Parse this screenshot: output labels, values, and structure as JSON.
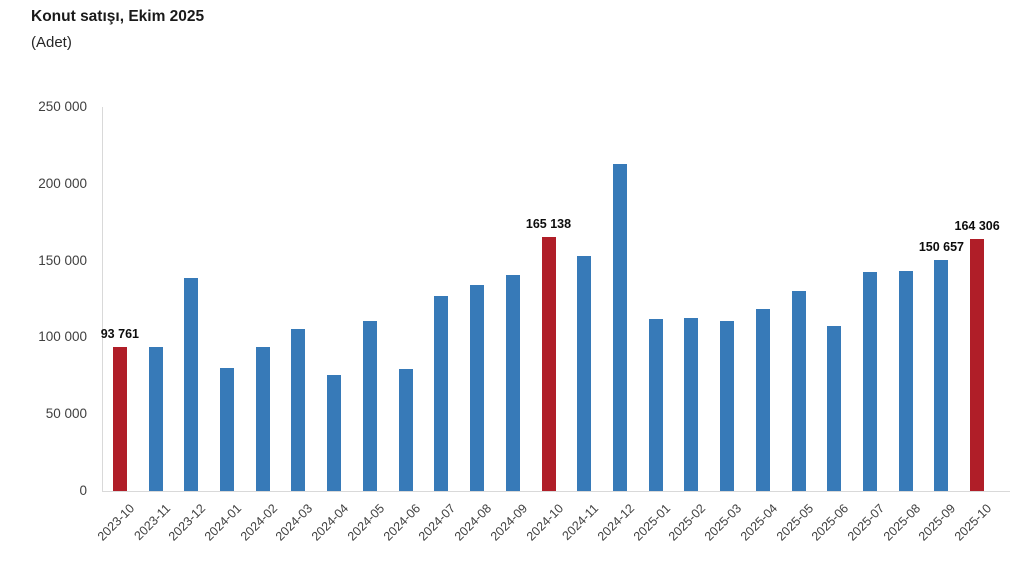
{
  "header": {
    "title": "Konut satışı, Ekim 2025",
    "subtitle": "(Adet)"
  },
  "chart_data": {
    "type": "bar",
    "title": "Konut satışı, Ekim 2025",
    "ylabel": "Adet",
    "categories": [
      "2023-10",
      "2023-11",
      "2023-12",
      "2024-01",
      "2024-02",
      "2024-03",
      "2024-04",
      "2024-05",
      "2024-06",
      "2024-07",
      "2024-08",
      "2024-09",
      "2024-10",
      "2024-11",
      "2024-12",
      "2025-01",
      "2025-02",
      "2025-03",
      "2025-04",
      "2025-05",
      "2025-06",
      "2025-07",
      "2025-08",
      "2025-09",
      "2025-10"
    ],
    "values": [
      93761,
      93577,
      138577,
      80308,
      93902,
      105476,
      75569,
      110588,
      79313,
      127088,
      134155,
      140919,
      165138,
      153014,
      212637,
      112173,
      112818,
      110795,
      118359,
      130025,
      107723,
      142858,
      143319,
      150657,
      164306
    ],
    "highlighted_categories": [
      "2023-10",
      "2024-10",
      "2025-10"
    ],
    "data_labels": [
      {
        "category": "2023-10",
        "text": "93 761"
      },
      {
        "category": "2024-10",
        "text": "165 138"
      },
      {
        "category": "2025-09",
        "text": "150 657"
      },
      {
        "category": "2025-10",
        "text": "164 306"
      }
    ],
    "ylim": [
      0,
      250000
    ],
    "yticks": [
      0,
      50000,
      100000,
      150000,
      200000,
      250000
    ],
    "ytick_labels": [
      "0",
      "50 000",
      "100 000",
      "150 000",
      "200 000",
      "250 000"
    ],
    "grid": false,
    "legend": false,
    "colors": {
      "bar": "#377ab8",
      "highlight": "#b01e28",
      "axis_line": "#d9d9d9",
      "tick_text": "#404040",
      "data_label_text": "#0d0d0d"
    }
  }
}
